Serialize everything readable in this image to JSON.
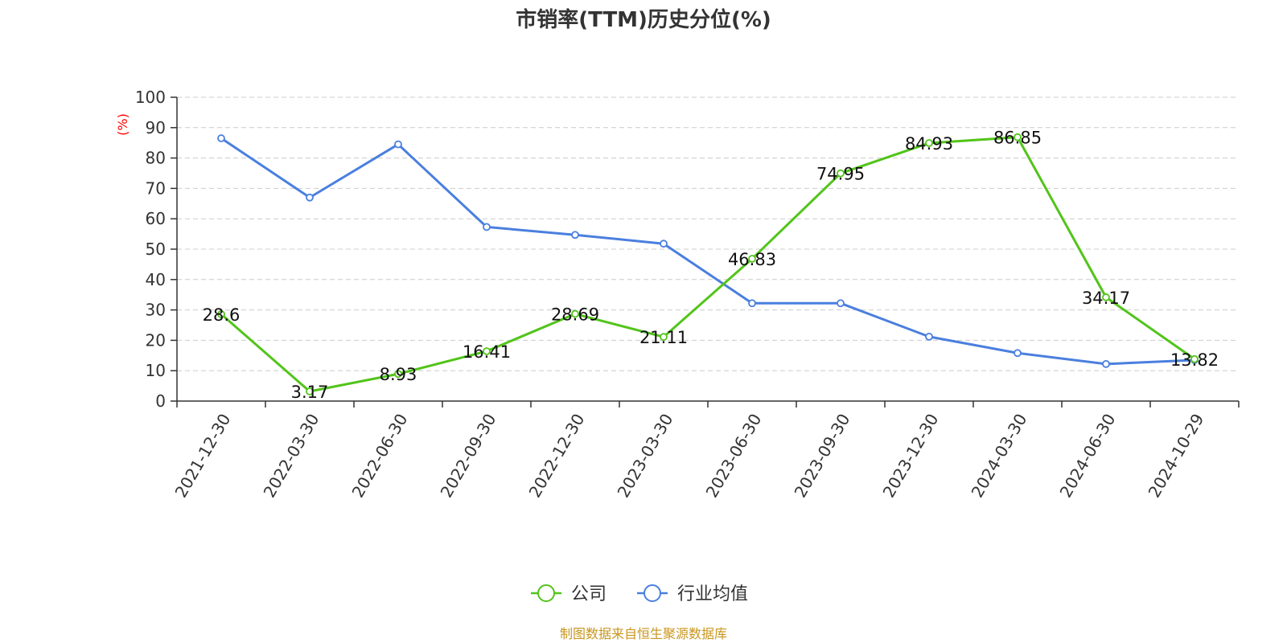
{
  "chart_data": {
    "type": "line",
    "title": "市销率(TTM)历史分位(%)",
    "ylabel": "(%)",
    "ylim": [
      0,
      100
    ],
    "yticks": [
      0,
      10,
      20,
      30,
      40,
      50,
      60,
      70,
      80,
      90,
      100
    ],
    "grid": true,
    "legend_position": "bottom-center",
    "categories": [
      "2021-12-30",
      "2022-03-30",
      "2022-06-30",
      "2022-09-30",
      "2022-12-30",
      "2023-03-30",
      "2023-06-30",
      "2023-09-30",
      "2023-12-30",
      "2024-03-30",
      "2024-06-30",
      "2024-10-29"
    ],
    "series": [
      {
        "name": "公司",
        "color": "#52c41a",
        "labels_shown": true,
        "values": [
          28.6,
          3.17,
          8.93,
          16.41,
          28.69,
          21.11,
          46.83,
          74.95,
          84.93,
          86.85,
          34.17,
          13.82
        ]
      },
      {
        "name": "行业均值",
        "color": "#4a7fdf",
        "labels_shown": false,
        "values": [
          86.5,
          67.0,
          84.5,
          57.3,
          54.7,
          51.8,
          32.2,
          32.2,
          21.2,
          15.8,
          12.2,
          13.5
        ]
      }
    ],
    "source_note": "制图数据来自恒生聚源数据库"
  }
}
